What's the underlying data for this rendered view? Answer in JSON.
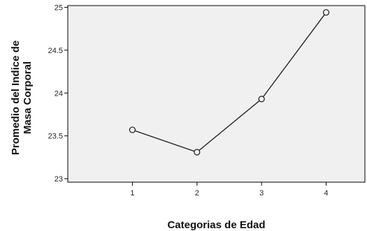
{
  "chart_data": {
    "type": "line",
    "title": "",
    "xlabel": "Categorias de Edad",
    "ylabel": [
      "Promedio del Indice de",
      "Masa Corporal"
    ],
    "x": [
      1,
      2,
      3,
      4
    ],
    "values": [
      23.57,
      23.31,
      23.93,
      24.94
    ],
    "xticks": [
      "1",
      "2",
      "3",
      "4"
    ],
    "yticks": [
      23,
      23.5,
      24,
      24.5,
      25
    ],
    "ytick_labels": [
      "23",
      "23.5",
      "24",
      "24.5",
      "25"
    ],
    "xlim": [
      0.0,
      4.6
    ],
    "ylim": [
      22.96,
      25.02
    ],
    "grid": false,
    "legend": "none",
    "colors": {
      "plot_background": "#f0f0f0",
      "line": "#1a1a1a",
      "marker_fill": "#f0f0f0"
    }
  }
}
